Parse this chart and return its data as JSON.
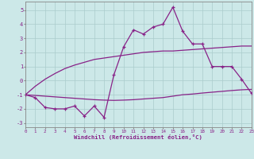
{
  "x": [
    0,
    1,
    2,
    3,
    4,
    5,
    6,
    7,
    8,
    9,
    10,
    11,
    12,
    13,
    14,
    15,
    16,
    17,
    18,
    19,
    20,
    21,
    22,
    23
  ],
  "y_main": [
    -1.0,
    -1.2,
    -1.9,
    -2.0,
    -2.0,
    -1.8,
    -2.5,
    -1.8,
    -2.6,
    0.4,
    2.4,
    3.6,
    3.3,
    3.8,
    4.0,
    5.2,
    3.5,
    2.6,
    2.6,
    1.0,
    1.0,
    1.0,
    0.1,
    -0.9
  ],
  "y_upper": [
    -1.0,
    -0.4,
    0.1,
    0.5,
    0.85,
    1.1,
    1.3,
    1.5,
    1.6,
    1.7,
    1.8,
    1.9,
    2.0,
    2.05,
    2.1,
    2.1,
    2.15,
    2.2,
    2.25,
    2.3,
    2.35,
    2.4,
    2.45,
    2.45
  ],
  "y_lower": [
    -1.0,
    -1.05,
    -1.1,
    -1.15,
    -1.2,
    -1.25,
    -1.3,
    -1.35,
    -1.38,
    -1.4,
    -1.38,
    -1.35,
    -1.3,
    -1.25,
    -1.2,
    -1.1,
    -1.0,
    -0.95,
    -0.88,
    -0.82,
    -0.76,
    -0.7,
    -0.65,
    -0.62
  ],
  "color": "#882288",
  "bg_color": "#cce8e8",
  "grid_color": "#aacccc",
  "xlabel": "Windchill (Refroidissement éolien,°C)",
  "xlim": [
    0,
    23
  ],
  "ylim": [
    -3.3,
    5.6
  ],
  "yticks": [
    -3,
    -2,
    -1,
    0,
    1,
    2,
    3,
    4,
    5
  ],
  "xticks": [
    0,
    1,
    2,
    3,
    4,
    5,
    6,
    7,
    8,
    9,
    10,
    11,
    12,
    13,
    14,
    15,
    16,
    17,
    18,
    19,
    20,
    21,
    22,
    23
  ]
}
